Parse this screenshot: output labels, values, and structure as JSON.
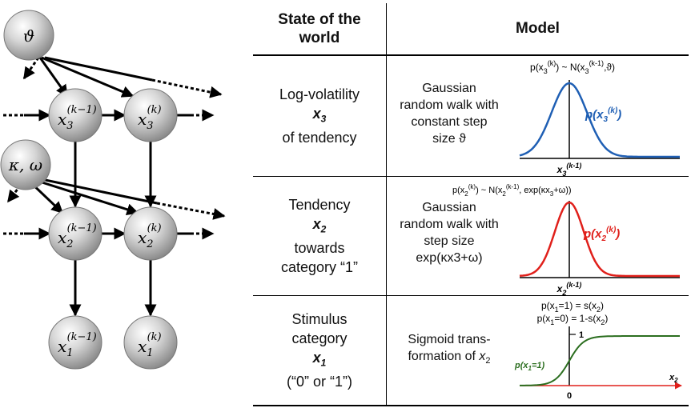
{
  "graph": {
    "theta_node": "ϑ",
    "kappa_omega_node": "κ, ω",
    "nodes": [
      {
        "name": "x3-prev-node",
        "base": "x",
        "sub": "3",
        "sup": "(k−1)"
      },
      {
        "name": "x3-curr-node",
        "base": "x",
        "sub": "3",
        "sup": "(k)"
      },
      {
        "name": "x2-prev-node",
        "base": "x",
        "sub": "2",
        "sup": "(k−1)"
      },
      {
        "name": "x2-curr-node",
        "base": "x",
        "sub": "2",
        "sup": "(k)"
      },
      {
        "name": "x1-prev-node",
        "base": "x",
        "sub": "1",
        "sup": "(k−1)"
      },
      {
        "name": "x1-curr-node",
        "base": "x",
        "sub": "1",
        "sup": "(k)"
      }
    ]
  },
  "table": {
    "header_state": [
      "State of the",
      "world"
    ],
    "header_model": "Model",
    "rows": [
      {
        "state_lines": [
          "Log-volatility",
          "of tendency"
        ],
        "var": "x",
        "var_sub": "3",
        "desc": [
          "Gaussian",
          "random walk with",
          "constant step",
          "size ϑ"
        ],
        "formula": "p(x3(k)) ~ N(x3(k-1),ϑ)",
        "curve_label": "p(x3(k))",
        "axis_label": "x3(k-1)",
        "color": "#1f5fb4"
      },
      {
        "state_lines": [
          "Tendency",
          "towards",
          "category “1”"
        ],
        "var": "x",
        "var_sub": "2",
        "desc": [
          "Gaussian",
          "random walk with",
          "step size",
          "exp(κx3+ω)"
        ],
        "formula": "p(x2(k)) ~ N(x2(k-1), exp(κx3+ω))",
        "curve_label": "p(x2(k))",
        "axis_label": "x2(k-1)",
        "color": "#e0201b"
      },
      {
        "state_lines": [
          "Stimulus",
          "category",
          "(“0” or “1”)"
        ],
        "var": "x",
        "var_sub": "1",
        "desc": [
          "Sigmoid trans-",
          "formation of x2"
        ],
        "formula_1": "p(x1=1) = s(x2)",
        "formula_2": "p(x1=0) = 1-s(x2)",
        "curve_label": "p(x1=1)",
        "tick_1": "1",
        "tick_0": "0",
        "axis_label": "x2",
        "color": "#2b6e1f",
        "axis_color": "#e0201b"
      }
    ]
  }
}
